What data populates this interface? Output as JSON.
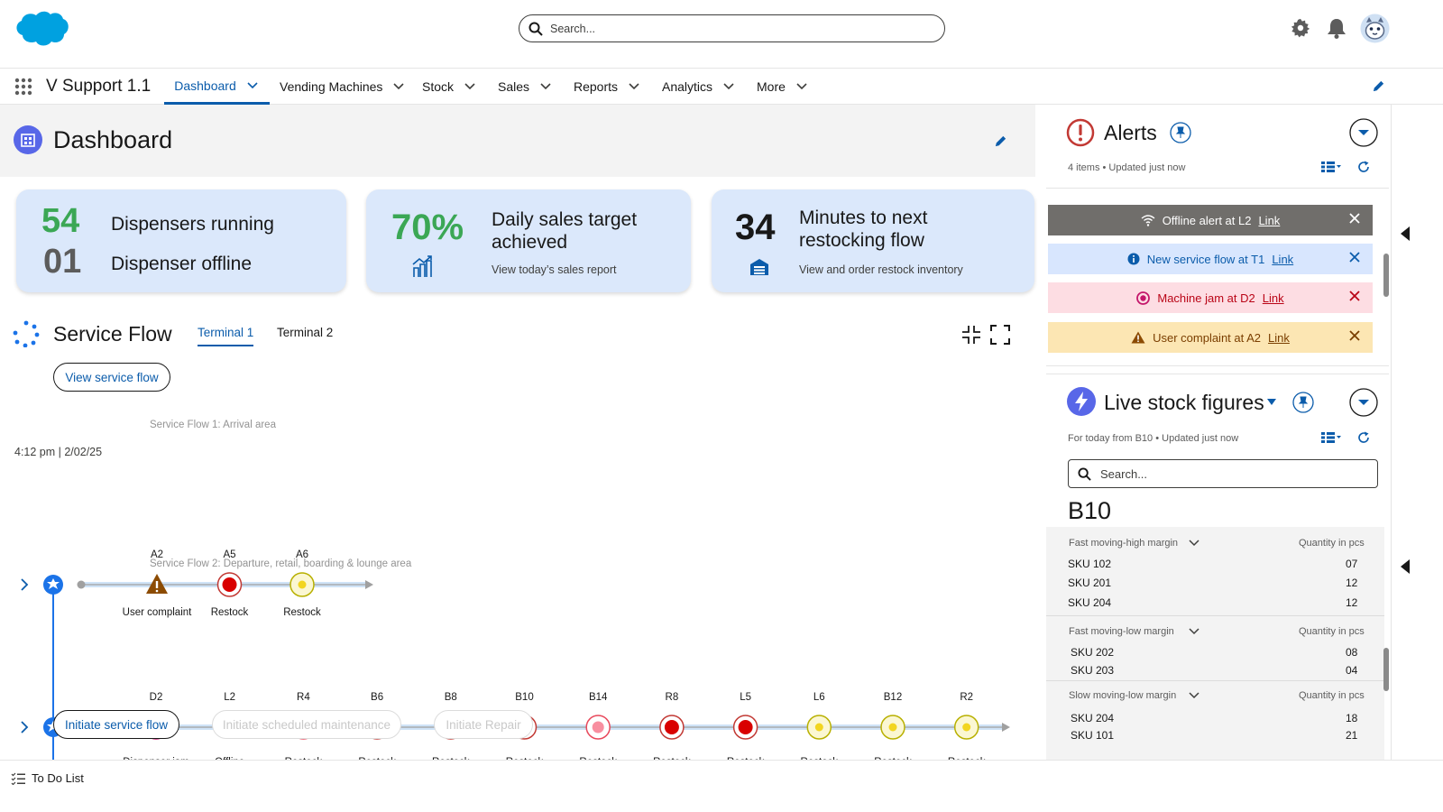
{
  "topbar": {
    "search_placeholder": "Search..."
  },
  "nav": {
    "app_name": "V Support 1.1",
    "tabs": [
      {
        "label": "Dashboard"
      },
      {
        "label": "Vending Machines"
      },
      {
        "label": "Stock"
      },
      {
        "label": "Sales"
      },
      {
        "label": "Reports"
      },
      {
        "label": "Analytics"
      },
      {
        "label": "More"
      }
    ]
  },
  "dashboard": {
    "title": "Dashboard"
  },
  "cards": {
    "c1": {
      "num1": "54",
      "text1": "Dispensers running",
      "num2": "01",
      "text2": "Dispenser offline"
    },
    "c2": {
      "num": "70%",
      "line1": "Daily sales target",
      "line2": "achieved",
      "sub": "View today’s sales report"
    },
    "c3": {
      "num": "34",
      "line1": "Minutes to next",
      "line2": "restocking flow",
      "sub": "View and order restock inventory"
    }
  },
  "service_flow": {
    "title": "Service Flow",
    "tabs": [
      "Terminal 1",
      "Terminal 2"
    ],
    "view_button": "View service flow",
    "timestamp": "4:12 pm | 2/02/25",
    "flow1": {
      "title": "Service Flow 1: Arrival area",
      "stops": [
        {
          "code": "A2",
          "status": "User complaint",
          "kind": "warning"
        },
        {
          "code": "A5",
          "status": "Restock",
          "kind": "red"
        },
        {
          "code": "A6",
          "status": "Restock",
          "kind": "yellow"
        }
      ]
    },
    "flow2": {
      "title": "Service Flow 2: Departure, retail, boarding & lounge area",
      "stops": [
        {
          "code": "D2",
          "status": "Dispenser jam",
          "kind": "jam"
        },
        {
          "code": "L2",
          "status": "Offline",
          "kind": "offline"
        },
        {
          "code": "R4",
          "status": "Restock",
          "kind": "pink"
        },
        {
          "code": "B6",
          "status": "Restock",
          "kind": "red"
        },
        {
          "code": "B8",
          "status": "Restock",
          "kind": "red"
        },
        {
          "code": "B10",
          "status": "Restock",
          "kind": "red"
        },
        {
          "code": "B14",
          "status": "Restock",
          "kind": "pink"
        },
        {
          "code": "R8",
          "status": "Restock",
          "kind": "red"
        },
        {
          "code": "L5",
          "status": "Restock",
          "kind": "red"
        },
        {
          "code": "L6",
          "status": "Restock",
          "kind": "yellow"
        },
        {
          "code": "B12",
          "status": "Restock",
          "kind": "yellow"
        },
        {
          "code": "R2",
          "status": "Restock",
          "kind": "yellow"
        }
      ]
    },
    "actions": [
      "Initiate service flow",
      "Initiate scheduled maintenance",
      "Initiate Repair"
    ]
  },
  "alerts": {
    "title": "Alerts",
    "meta": "4 items • Updated just now",
    "items": [
      {
        "text": "Offline alert at L2",
        "link": "Link",
        "bg": "#706e6b",
        "fg": "#ffffff",
        "icon": "wifi-off-icon"
      },
      {
        "text": "New service flow at T1",
        "link": "Link",
        "bg": "#d8e6fe",
        "fg": "#0b5cab",
        "icon": "info-icon"
      },
      {
        "text": "Machine jam at D2",
        "link": "Link",
        "bg": "#fddde3",
        "fg": "#ba0517",
        "icon": "jam-icon"
      },
      {
        "text": "User complaint at A2",
        "link": "Link",
        "bg": "#fce6b3",
        "fg": "#7a3e00",
        "icon": "warning-icon"
      }
    ]
  },
  "live_stock": {
    "title": "Live stock figures",
    "meta_prefix": "For today from",
    "meta_location": "B10",
    "meta_suffix": "• Updated just now",
    "search_placeholder": "Search...",
    "location": "B10",
    "qty_header": "Quantity in pcs",
    "groups": [
      {
        "name": "Fast moving-high margin",
        "rows": [
          {
            "sku": "SKU 102",
            "qty": "07"
          },
          {
            "sku": "SKU 201",
            "qty": "12"
          },
          {
            "sku": "SKU 204",
            "qty": "12"
          }
        ]
      },
      {
        "name": "Fast moving-low margin",
        "rows": [
          {
            "sku": "SKU 202",
            "qty": "08"
          },
          {
            "sku": "SKU 203",
            "qty": "04"
          }
        ]
      },
      {
        "name": "Slow moving-low margin",
        "rows": [
          {
            "sku": "SKU 204",
            "qty": "18"
          },
          {
            "sku": "SKU 101",
            "qty": "21"
          }
        ]
      }
    ]
  },
  "footer": {
    "todo": "To Do List"
  },
  "colors": {
    "brand": "#0b5cab",
    "cloud": "#00a1e0",
    "green": "#2e844a",
    "red": "#c23934"
  }
}
